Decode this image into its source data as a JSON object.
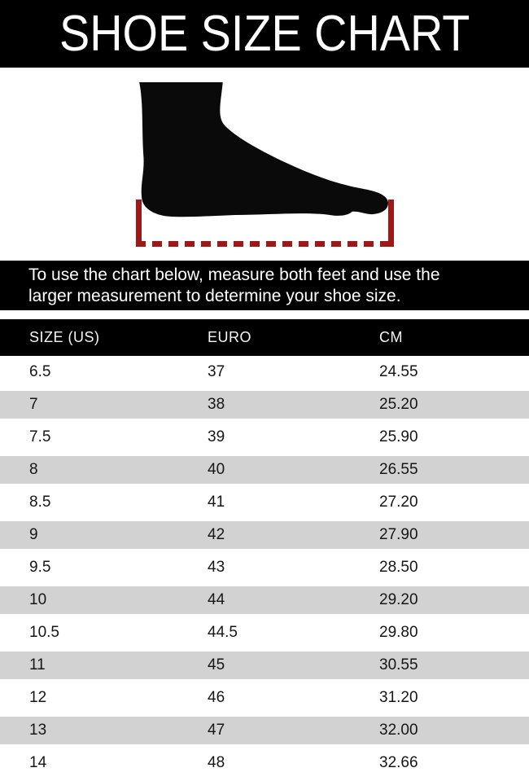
{
  "title": "SHOE SIZE CHART",
  "instructions": "To use the chart below, measure both feet and use the larger measurement to determine your shoe size.",
  "illustration": {
    "icon": "foot-silhouette-icon",
    "foot_color": "#0A0A0A",
    "measure_line_color": "#9E1818"
  },
  "colors": {
    "band_background": "#000000",
    "row_alt_background": "#D2D2D2",
    "text_on_dark": "#FFFFFF",
    "text_on_light": "#161616"
  },
  "table": {
    "headers": [
      "SIZE (US)",
      "EURO",
      "CM"
    ],
    "rows": [
      [
        "6.5",
        "37",
        "24.55"
      ],
      [
        "7",
        "38",
        "25.20"
      ],
      [
        "7.5",
        "39",
        "25.90"
      ],
      [
        "8",
        "40",
        "26.55"
      ],
      [
        "8.5",
        "41",
        "27.20"
      ],
      [
        "9",
        "42",
        "27.90"
      ],
      [
        "9.5",
        "43",
        "28.50"
      ],
      [
        "10",
        "44",
        "29.20"
      ],
      [
        "10.5",
        "44.5",
        "29.80"
      ],
      [
        "11",
        "45",
        "30.55"
      ],
      [
        "12",
        "46",
        "31.20"
      ],
      [
        "13",
        "47",
        "32.00"
      ],
      [
        "14",
        "48",
        "32.66"
      ]
    ]
  },
  "chart_data": {
    "type": "table",
    "title": "SHOE SIZE CHART",
    "columns": [
      "SIZE (US)",
      "EURO",
      "CM"
    ],
    "rows": [
      [
        "6.5",
        "37",
        "24.55"
      ],
      [
        "7",
        "38",
        "25.20"
      ],
      [
        "7.5",
        "39",
        "25.90"
      ],
      [
        "8",
        "40",
        "26.55"
      ],
      [
        "8.5",
        "41",
        "27.20"
      ],
      [
        "9",
        "42",
        "27.90"
      ],
      [
        "9.5",
        "43",
        "28.50"
      ],
      [
        "10",
        "44",
        "29.20"
      ],
      [
        "10.5",
        "44.5",
        "29.80"
      ],
      [
        "11",
        "45",
        "30.55"
      ],
      [
        "12",
        "46",
        "31.20"
      ],
      [
        "13",
        "47",
        "32.00"
      ],
      [
        "14",
        "48",
        "32.66"
      ]
    ]
  }
}
